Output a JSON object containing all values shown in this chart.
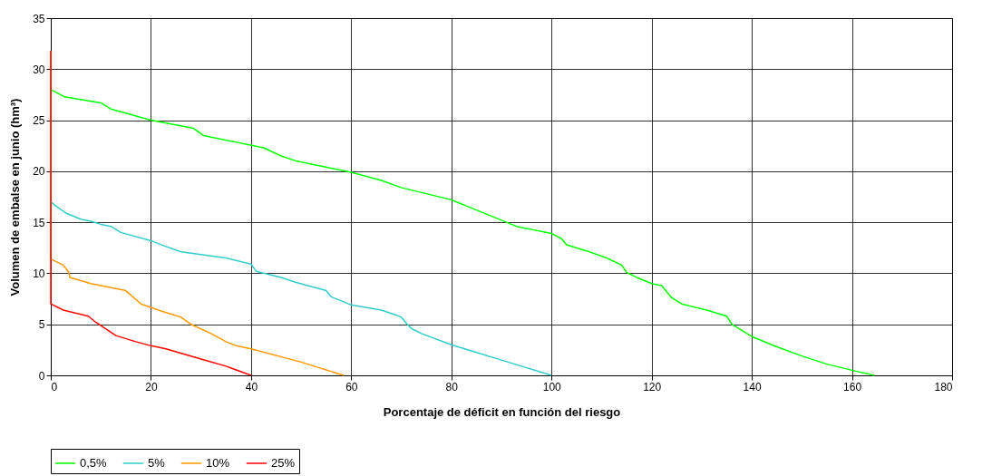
{
  "chart_data": {
    "type": "line",
    "xlabel": "Porcentaje de déficit en función del riesgo",
    "ylabel": "Volumen de embalse en junio (hm³)",
    "xlim": [
      0,
      180
    ],
    "xticks": [
      0,
      20,
      40,
      60,
      80,
      100,
      120,
      140,
      160,
      180
    ],
    "ylim": [
      0,
      35
    ],
    "yticks": [
      0,
      5,
      10,
      15,
      20,
      25,
      30,
      35
    ],
    "grid": true,
    "legend": "bottom",
    "marker": "none",
    "line_style": "solid",
    "series": [
      {
        "name": "0,5%",
        "color": "#00ff00",
        "x": [
          0,
          2.7,
          10,
          12,
          20,
          28.5,
          30.5,
          42.5,
          46,
          49,
          56,
          60,
          66,
          70,
          80,
          84,
          87,
          90,
          93,
          100,
          102,
          103,
          107,
          111,
          114,
          115,
          117,
          120,
          122,
          123,
          124,
          126,
          131,
          135,
          136,
          140,
          145,
          150,
          155,
          160,
          164.5
        ],
        "values": [
          28,
          27.3,
          26.7,
          26.1,
          25,
          24.2,
          23.5,
          22.3,
          21.5,
          21,
          20.3,
          19.9,
          19.1,
          18.4,
          17.2,
          16.4,
          15.8,
          15.2,
          14.6,
          13.9,
          13.4,
          12.8,
          12.2,
          11.5,
          10.8,
          10.1,
          9.6,
          9,
          8.8,
          8.2,
          7.6,
          7,
          6.4,
          5.8,
          5,
          3.8,
          2.8,
          1.9,
          1.1,
          0.5,
          0
        ]
      },
      {
        "name": "5%",
        "color": "#33cccc",
        "x": [
          0,
          1,
          3,
          6,
          8,
          10,
          12,
          14,
          20,
          22,
          26,
          35,
          40,
          41,
          46,
          49,
          55,
          56,
          58,
          60,
          66,
          69,
          70,
          71,
          72,
          74,
          80,
          90,
          100
        ],
        "values": [
          17,
          16.6,
          15.9,
          15.3,
          15.1,
          14.8,
          14.6,
          14,
          13.2,
          12.8,
          12.1,
          11.5,
          10.9,
          10.2,
          9.6,
          9.1,
          8.3,
          7.7,
          7.3,
          6.9,
          6.4,
          5.9,
          5.7,
          5.1,
          4.6,
          4.1,
          3,
          1.5,
          0
        ]
      },
      {
        "name": "10%",
        "color": "#ff9900",
        "x": [
          0,
          0,
          2.5,
          3.6,
          3.8,
          8,
          15,
          18,
          22,
          26,
          28,
          32,
          35,
          37,
          40,
          50,
          58.5
        ],
        "values": [
          31.8,
          11.4,
          10.8,
          10.1,
          9.6,
          9,
          8.3,
          7,
          6.3,
          5.7,
          5,
          4.1,
          3.3,
          2.9,
          2.6,
          1.3,
          0
        ]
      },
      {
        "name": "25%",
        "color": "#ff0000",
        "x": [
          0,
          0,
          2.5,
          7.5,
          9,
          13,
          17,
          20,
          23,
          30,
          35,
          40
        ],
        "values": [
          31.8,
          7,
          6.4,
          5.8,
          5.2,
          3.9,
          3.3,
          2.9,
          2.6,
          1.6,
          0.9,
          0
        ]
      }
    ]
  }
}
